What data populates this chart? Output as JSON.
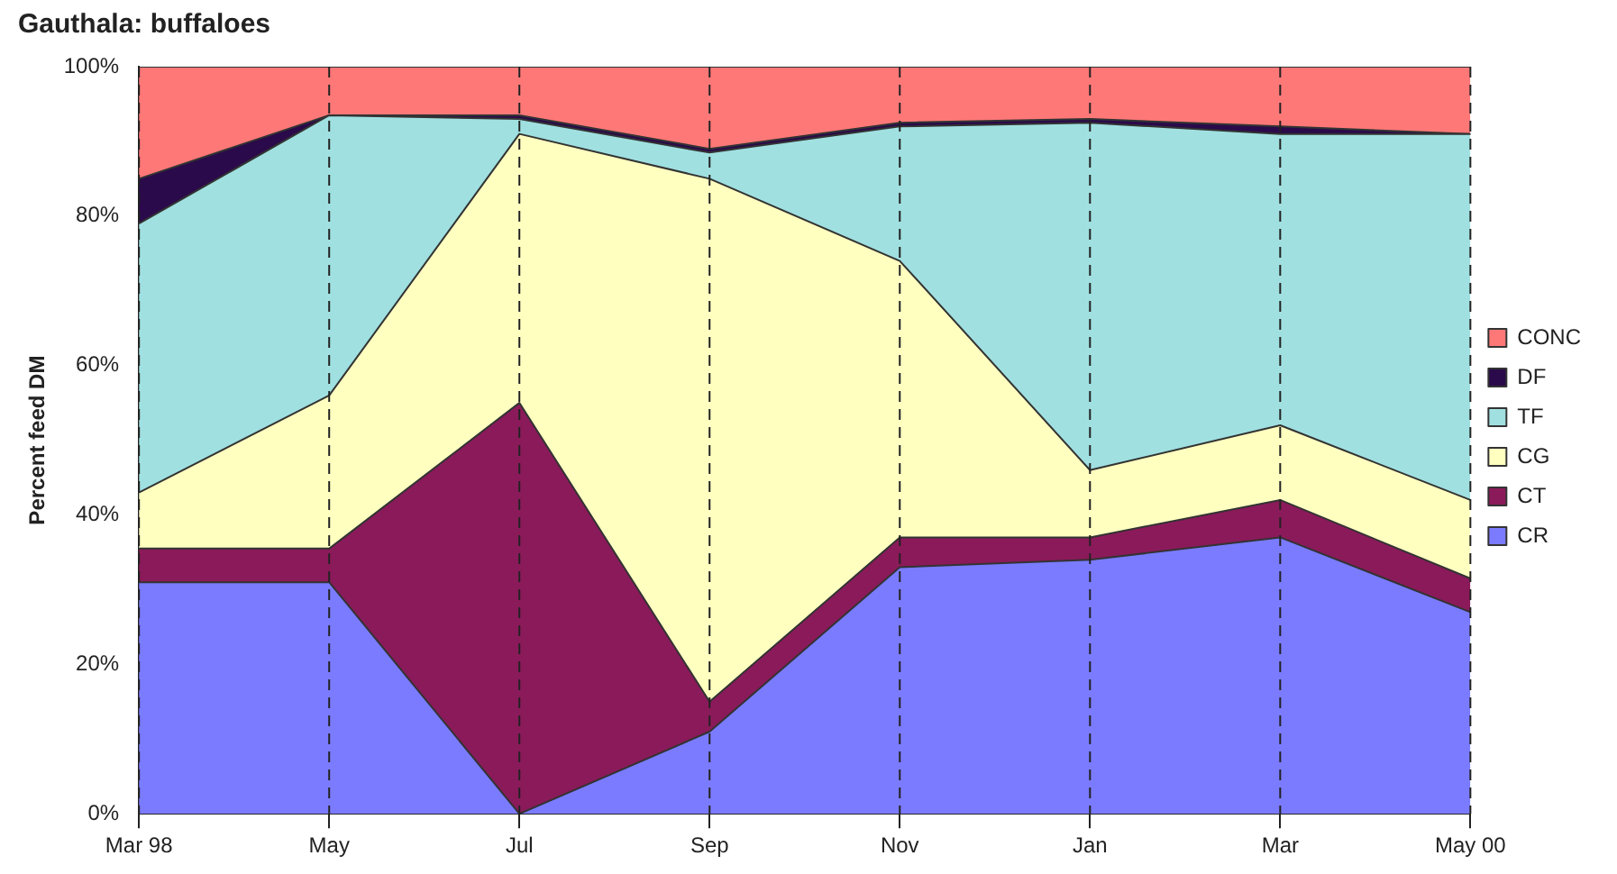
{
  "chart_data": {
    "type": "area",
    "stacked": true,
    "title": "Gauthala: buffaloes",
    "ylabel": "Percent feed DM",
    "categories": [
      "Mar 98",
      "May",
      "Jul",
      "Sep",
      "Nov",
      "Jan",
      "Mar",
      "May 00"
    ],
    "series": [
      {
        "name": "CR",
        "color": "#7b7bff",
        "values": [
          31,
          31,
          0,
          11,
          33,
          34,
          37,
          27
        ]
      },
      {
        "name": "CT",
        "color": "#8b1a5a",
        "values": [
          4.5,
          4.5,
          55,
          4,
          4,
          3,
          5,
          4.5
        ]
      },
      {
        "name": "CG",
        "color": "#ffffc0",
        "values": [
          7.5,
          20.5,
          36,
          70,
          37,
          9,
          10,
          10.5
        ]
      },
      {
        "name": "TF",
        "color": "#a0e0e0",
        "values": [
          36,
          37.5,
          2,
          3.5,
          18,
          46.5,
          39,
          49
        ]
      },
      {
        "name": "DF",
        "color": "#2a0a4a",
        "values": [
          6,
          0,
          0.5,
          0.5,
          0.5,
          0.5,
          1,
          0
        ]
      },
      {
        "name": "CONC",
        "color": "#ff7878",
        "values": [
          15,
          6.5,
          6.5,
          11,
          7.5,
          7,
          8,
          9
        ]
      }
    ],
    "ylim": [
      0,
      100
    ],
    "yticks": [
      {
        "value": 0,
        "label": "0%"
      },
      {
        "value": 20,
        "label": "20%"
      },
      {
        "value": 40,
        "label": "40%"
      },
      {
        "value": 60,
        "label": "60%"
      },
      {
        "value": 80,
        "label": "80%"
      },
      {
        "value": 100,
        "label": "100%"
      }
    ],
    "grid": "x",
    "legend": "right"
  }
}
